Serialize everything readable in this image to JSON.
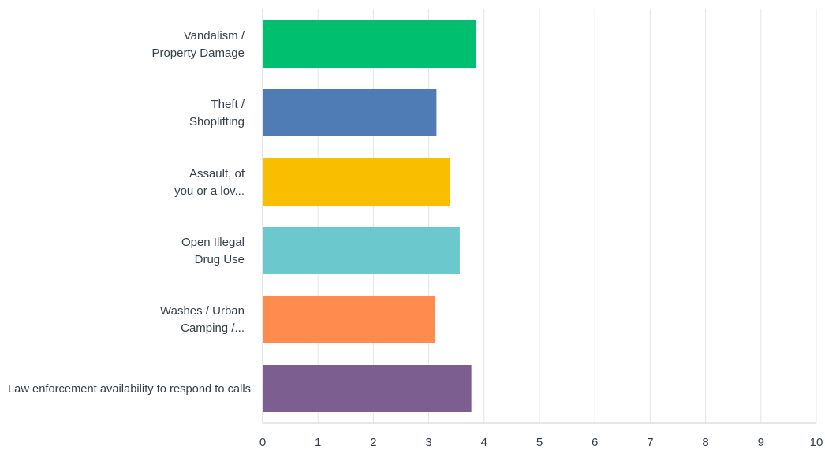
{
  "chart_data": {
    "type": "bar",
    "orientation": "horizontal",
    "categories": [
      [
        "Vandalism /",
        "Property Damage"
      ],
      [
        "Theft /",
        "Shoplifting"
      ],
      [
        "Assault, of",
        "you or a lov..."
      ],
      [
        "Open Illegal",
        "Drug Use"
      ],
      [
        "Washes / Urban",
        "Camping /..."
      ],
      [
        "Law enforcement availability to respond to calls"
      ]
    ],
    "values": [
      3.85,
      3.14,
      3.38,
      3.56,
      3.12,
      3.77
    ],
    "colors": [
      "#00bf6f",
      "#507cb6",
      "#f9be00",
      "#6bc8cd",
      "#ff8b4f",
      "#7d5e90"
    ],
    "xlim": [
      0,
      10
    ],
    "xticks": [
      0,
      1,
      2,
      3,
      4,
      5,
      6,
      7,
      8,
      9,
      10
    ],
    "grid": "vertical",
    "gridline_color": "#e5e5e5",
    "title": "",
    "xlabel": "",
    "ylabel": ""
  }
}
